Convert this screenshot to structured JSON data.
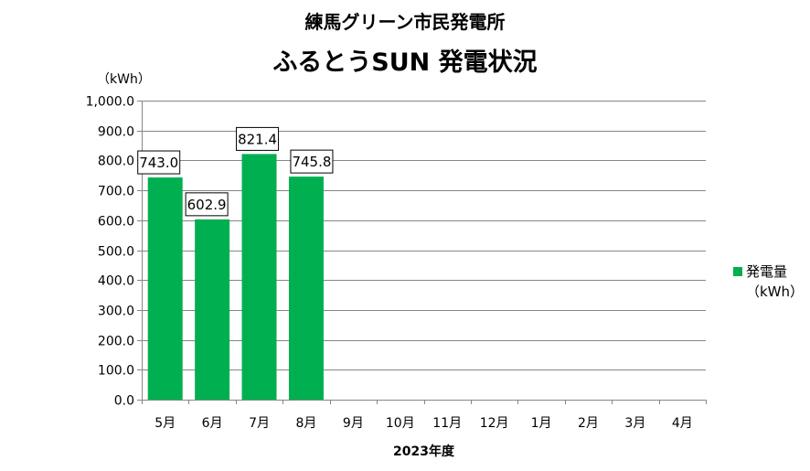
{
  "chart_data": {
    "type": "bar",
    "title": "練馬グリーン市民発電所",
    "subtitle": "ふるとうSUN 発電状況",
    "ylabel": "（kWh）",
    "xlabel": "2023年度",
    "ylim": [
      0,
      1000
    ],
    "ytick_step": 100,
    "categories": [
      "5月",
      "6月",
      "7月",
      "8月",
      "9月",
      "10月",
      "11月",
      "12月",
      "1月",
      "2月",
      "3月",
      "4月"
    ],
    "series": [
      {
        "name": "発電量",
        "name_line2": "（kWh）",
        "values": [
          743.0,
          602.9,
          821.4,
          745.8,
          null,
          null,
          null,
          null,
          null,
          null,
          null,
          null
        ],
        "color": "#00b050"
      }
    ],
    "data_labels": [
      "743.0",
      "602.9",
      "821.4",
      "745.8"
    ],
    "grid": true,
    "legend_position": "right"
  }
}
